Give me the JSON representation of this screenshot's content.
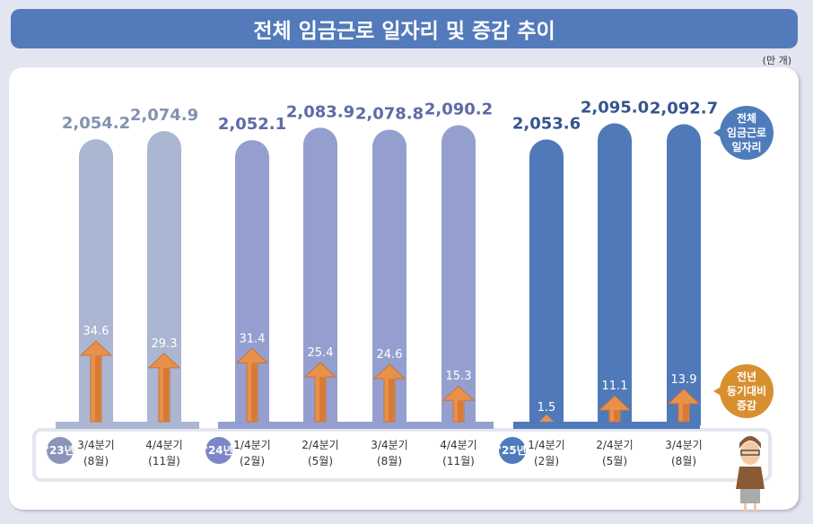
{
  "header": {
    "title": "전체 임금근로 일자리 및 증감 추이",
    "unit": "(만 개)"
  },
  "chart_data": {
    "type": "bar",
    "title": "전체 임금근로 일자리 및 증감 추이",
    "unit": "만 개",
    "groups": [
      {
        "year": "'23년",
        "color": "#aab6d2",
        "label_color": "#8591b1"
      },
      {
        "year": "'24년",
        "color": "#959fcf",
        "label_color": "#5f6aa7"
      },
      {
        "year": "'25년",
        "color": "#5079b9",
        "label_color": "#35558f"
      }
    ],
    "categories": [
      {
        "group": 0,
        "quarter": "3/4분기",
        "month": "(8월)"
      },
      {
        "group": 0,
        "quarter": "4/4분기",
        "month": "(11월)"
      },
      {
        "group": 1,
        "quarter": "1/4분기",
        "month": "(2월)"
      },
      {
        "group": 1,
        "quarter": "2/4분기",
        "month": "(5월)"
      },
      {
        "group": 1,
        "quarter": "3/4분기",
        "month": "(8월)"
      },
      {
        "group": 1,
        "quarter": "4/4분기",
        "month": "(11월)"
      },
      {
        "group": 2,
        "quarter": "1/4분기",
        "month": "(2월)"
      },
      {
        "group": 2,
        "quarter": "2/4분기",
        "month": "(5월)"
      },
      {
        "group": 2,
        "quarter": "3/4분기",
        "month": "(8월)"
      }
    ],
    "series": [
      {
        "name": "전체 임금근로 일자리",
        "values": [
          2054.2,
          2074.9,
          2052.1,
          2083.9,
          2078.8,
          2090.2,
          2053.6,
          2095.0,
          2092.7
        ],
        "labels": [
          "2,054.2",
          "2,074.9",
          "2,052.1",
          "2,083.9",
          "2,078.8",
          "2,090.2",
          "2,053.6",
          "2,095.0",
          "2,092.7"
        ]
      },
      {
        "name": "전년 동기대비 증감",
        "values": [
          34.6,
          29.3,
          31.4,
          25.4,
          24.6,
          15.3,
          1.5,
          11.1,
          13.9
        ],
        "labels": [
          "34.6",
          "29.3",
          "31.4",
          "25.4",
          "24.6",
          "15.3",
          "1.5",
          "11.1",
          "13.9"
        ],
        "color": "#e8914a"
      }
    ],
    "legend": {
      "total": [
        "전체",
        "임금근로",
        "일자리"
      ],
      "change": [
        "전년",
        "동기대비",
        "증감"
      ],
      "total_color": "#4e7cbb",
      "change_color": "#d88f2e"
    }
  }
}
